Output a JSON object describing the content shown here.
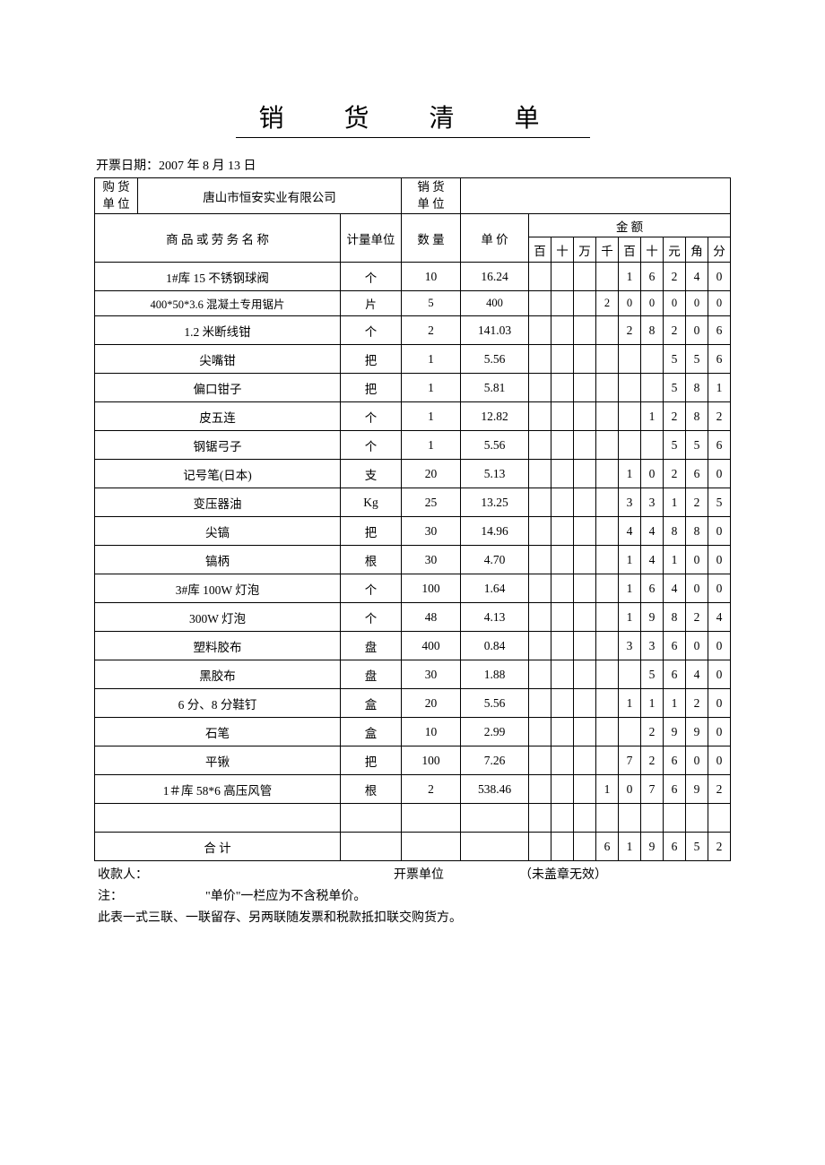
{
  "title": "销 货 清 单",
  "date_label": "开票日期：",
  "date_value": "2007 年 8 月 13 日",
  "buyer_label_l1": "购 货",
  "buyer_label_l2": "单 位",
  "buyer_value": "唐山市恒安实业有限公司",
  "seller_label_l1": "销 货",
  "seller_label_l2": "单 位",
  "seller_value": "",
  "col_name": "商 品 或 劳 务 名 称",
  "col_unit": "计量单位",
  "col_qty": "数 量",
  "col_price": "单  价",
  "col_amount": "金    额",
  "digits_header": [
    "百",
    "十",
    "万",
    "千",
    "百",
    "十",
    "元",
    "角",
    "分"
  ],
  "rows": [
    {
      "name": "1#库   15 不锈钢球阀",
      "unit": "个",
      "qty": "10",
      "price": "16.24",
      "d": [
        "",
        "",
        "",
        "",
        "1",
        "6",
        "2",
        "4",
        "0"
      ]
    },
    {
      "name": "400*50*3.6 混凝土专用锯片",
      "unit": "片",
      "qty": "5",
      "price": "400",
      "d": [
        "",
        "",
        "",
        "2",
        "0",
        "0",
        "0",
        "0",
        "0"
      ],
      "small": true
    },
    {
      "name": "1.2 米断线钳",
      "unit": "个",
      "qty": "2",
      "price": "141.03",
      "d": [
        "",
        "",
        "",
        "",
        "2",
        "8",
        "2",
        "0",
        "6"
      ]
    },
    {
      "name": "尖嘴钳",
      "unit": "把",
      "qty": "1",
      "price": "5.56",
      "d": [
        "",
        "",
        "",
        "",
        "",
        "",
        "5",
        "5",
        "6"
      ]
    },
    {
      "name": "偏口钳子",
      "unit": "把",
      "qty": "1",
      "price": "5.81",
      "d": [
        "",
        "",
        "",
        "",
        "",
        "",
        "5",
        "8",
        "1"
      ]
    },
    {
      "name": "皮五连",
      "unit": "个",
      "qty": "1",
      "price": "12.82",
      "d": [
        "",
        "",
        "",
        "",
        "",
        "1",
        "2",
        "8",
        "2"
      ]
    },
    {
      "name": "钢锯弓子",
      "unit": "个",
      "qty": "1",
      "price": "5.56",
      "d": [
        "",
        "",
        "",
        "",
        "",
        "",
        "5",
        "5",
        "6"
      ]
    },
    {
      "name": "记号笔(日本)",
      "unit": "支",
      "qty": "20",
      "price": "5.13",
      "d": [
        "",
        "",
        "",
        "",
        "1",
        "0",
        "2",
        "6",
        "0"
      ]
    },
    {
      "name": "变压器油",
      "unit": "Kg",
      "qty": "25",
      "price": "13.25",
      "d": [
        "",
        "",
        "",
        "",
        "3",
        "3",
        "1",
        "2",
        "5"
      ]
    },
    {
      "name": "尖镐",
      "unit": "把",
      "qty": "30",
      "price": "14.96",
      "d": [
        "",
        "",
        "",
        "",
        "4",
        "4",
        "8",
        "8",
        "0"
      ]
    },
    {
      "name": "镐柄",
      "unit": "根",
      "qty": "30",
      "price": "4.70",
      "d": [
        "",
        "",
        "",
        "",
        "1",
        "4",
        "1",
        "0",
        "0"
      ]
    },
    {
      "name": "3#库   100W 灯泡",
      "unit": "个",
      "qty": "100",
      "price": "1.64",
      "d": [
        "",
        "",
        "",
        "",
        "1",
        "6",
        "4",
        "0",
        "0"
      ]
    },
    {
      "name": "300W 灯泡",
      "unit": "个",
      "qty": "48",
      "price": "4.13",
      "d": [
        "",
        "",
        "",
        "",
        "1",
        "9",
        "8",
        "2",
        "4"
      ]
    },
    {
      "name": "塑料胶布",
      "unit": "盘",
      "qty": "400",
      "price": "0.84",
      "d": [
        "",
        "",
        "",
        "",
        "3",
        "3",
        "6",
        "0",
        "0"
      ]
    },
    {
      "name": "黑胶布",
      "unit": "盘",
      "qty": "30",
      "price": "1.88",
      "d": [
        "",
        "",
        "",
        "",
        "",
        "5",
        "6",
        "4",
        "0"
      ]
    },
    {
      "name": "6 分、8 分鞋钉",
      "unit": "盒",
      "qty": "20",
      "price": "5.56",
      "d": [
        "",
        "",
        "",
        "",
        "1",
        "1",
        "1",
        "2",
        "0"
      ]
    },
    {
      "name": "石笔",
      "unit": "盒",
      "qty": "10",
      "price": "2.99",
      "d": [
        "",
        "",
        "",
        "",
        "",
        "2",
        "9",
        "9",
        "0"
      ]
    },
    {
      "name": "平锹",
      "unit": "把",
      "qty": "100",
      "price": "7.26",
      "d": [
        "",
        "",
        "",
        "",
        "7",
        "2",
        "6",
        "0",
        "0"
      ]
    },
    {
      "name": "1＃库   58*6 高压风管",
      "unit": "根",
      "qty": "2",
      "price": "538.46",
      "d": [
        "",
        "",
        "",
        "1",
        "0",
        "7",
        "6",
        "9",
        "2"
      ]
    },
    {
      "name": "",
      "unit": "",
      "qty": "",
      "price": "",
      "d": [
        "",
        "",
        "",
        "",
        "",
        "",
        "",
        "",
        ""
      ]
    }
  ],
  "total_label": "合    计",
  "total_digits": [
    "",
    "",
    "",
    "6",
    "1",
    "9",
    "6",
    "5",
    "2"
  ],
  "footer_payee": "收款人：",
  "footer_issuer": "开票单位",
  "footer_stamp": "（未盖章无效）",
  "footer_note1_label": "注：",
  "footer_note1_text": "\"单价\"一栏应为不含税单价。",
  "footer_note2": "此表一式三联、一联留存、另两联随发票和税款抵扣联交购货方。"
}
